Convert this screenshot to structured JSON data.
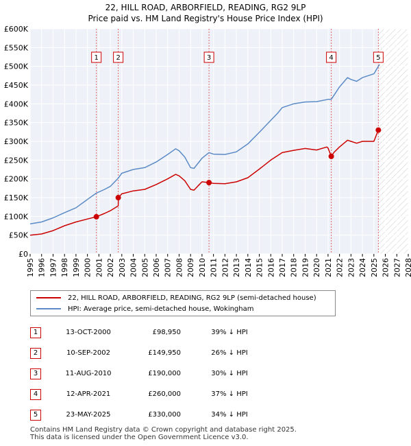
{
  "chart_data": {
    "type": "line",
    "title": "22, HILL ROAD, ARBORFIELD, READING, RG2 9LP",
    "subtitle": "Price paid vs. HM Land Registry's House Price Index (HPI)",
    "xlim": [
      1995,
      2028
    ],
    "ylim": [
      0,
      600000
    ],
    "y_ticks": [
      0,
      50000,
      100000,
      150000,
      200000,
      250000,
      300000,
      350000,
      400000,
      450000,
      500000,
      550000,
      600000
    ],
    "y_tick_labels": [
      "£0",
      "£50K",
      "£100K",
      "£150K",
      "£200K",
      "£250K",
      "£300K",
      "£350K",
      "£400K",
      "£450K",
      "£500K",
      "£550K",
      "£600K"
    ],
    "x_ticks": [
      1995,
      1996,
      1997,
      1998,
      1999,
      2000,
      2001,
      2002,
      2003,
      2004,
      2005,
      2006,
      2007,
      2008,
      2009,
      2010,
      2011,
      2012,
      2013,
      2014,
      2015,
      2016,
      2017,
      2018,
      2019,
      2020,
      2021,
      2022,
      2023,
      2024,
      2025,
      2026,
      2027,
      2028
    ],
    "future_shade_from": 2025.4,
    "series": [
      {
        "name": "22, HILL ROAD, ARBORFIELD, READING, RG2 9LP (semi-detached house)",
        "color": "#cc0000",
        "x": [
          1995.0,
          1996.0,
          1997.0,
          1998.0,
          1999.0,
          2000.0,
          2000.78,
          2001.5,
          2002.0,
          2002.69,
          2002.7,
          2003.0,
          2004.0,
          2005.0,
          2006.0,
          2007.0,
          2007.7,
          2008.0,
          2008.5,
          2009.0,
          2009.3,
          2009.8,
          2010.0,
          2010.61,
          2011.0,
          2012.0,
          2013.0,
          2014.0,
          2015.0,
          2016.0,
          2016.6,
          2017.0,
          2018.0,
          2019.0,
          2020.0,
          2020.9,
          2021.0,
          2021.28,
          2021.5,
          2022.0,
          2022.7,
          2023.0,
          2023.5,
          2024.0,
          2025.0,
          2025.39,
          2025.45
        ],
        "y": [
          50000,
          53000,
          62000,
          75000,
          85000,
          93000,
          98950,
          108000,
          115000,
          128000,
          149950,
          160000,
          168000,
          172000,
          185000,
          200000,
          212000,
          208000,
          195000,
          172000,
          170000,
          186000,
          192000,
          190000,
          188000,
          187000,
          192000,
          203000,
          226000,
          250000,
          262000,
          270000,
          276000,
          281000,
          277000,
          285000,
          282000,
          260000,
          270000,
          285000,
          303000,
          300000,
          295000,
          300000,
          300000,
          330000,
          335000
        ]
      },
      {
        "name": "HPI: Average price, semi-detached house, Wokingham",
        "color": "#5b8ac6",
        "x": [
          1995.0,
          1996.0,
          1997.0,
          1998.0,
          1999.0,
          2000.0,
          2000.78,
          2001.5,
          2002.0,
          2002.69,
          2003.0,
          2004.0,
          2005.0,
          2006.0,
          2007.0,
          2007.7,
          2008.0,
          2008.5,
          2009.0,
          2009.3,
          2010.0,
          2010.61,
          2011.0,
          2012.0,
          2013.0,
          2014.0,
          2015.0,
          2016.0,
          2016.6,
          2017.0,
          2018.0,
          2019.0,
          2020.0,
          2021.0,
          2021.28,
          2022.0,
          2022.7,
          2023.0,
          2023.5,
          2024.0,
          2025.0,
          2025.39,
          2025.5
        ],
        "y": [
          80000,
          85000,
          96000,
          110000,
          123000,
          145000,
          162000,
          172000,
          180000,
          202000,
          215000,
          225000,
          230000,
          245000,
          265000,
          280000,
          275000,
          258000,
          230000,
          228000,
          255000,
          270000,
          266000,
          265000,
          272000,
          293000,
          324000,
          356000,
          375000,
          390000,
          400000,
          405000,
          406000,
          412000,
          412000,
          445000,
          470000,
          465000,
          460000,
          470000,
          480000,
          500000,
          505000
        ]
      }
    ],
    "sales": [
      {
        "label": "1",
        "x": 2000.78,
        "y": 98950
      },
      {
        "label": "2",
        "x": 2002.69,
        "y": 149950
      },
      {
        "label": "3",
        "x": 2010.61,
        "y": 190000
      },
      {
        "label": "4",
        "x": 2021.28,
        "y": 260000
      },
      {
        "label": "5",
        "x": 2025.39,
        "y": 330000
      }
    ]
  },
  "legend": {
    "property_label": "22, HILL ROAD, ARBORFIELD, READING, RG2 9LP (semi-detached house)",
    "hpi_label": "HPI: Average price, semi-detached house, Wokingham",
    "property_color": "#cc0000",
    "hpi_color": "#5b8ac6"
  },
  "transactions": [
    {
      "num": "1",
      "date": "13-OCT-2000",
      "price": "£98,950",
      "hpi": "39% ↓ HPI"
    },
    {
      "num": "2",
      "date": "10-SEP-2002",
      "price": "£149,950",
      "hpi": "26% ↓ HPI"
    },
    {
      "num": "3",
      "date": "11-AUG-2010",
      "price": "£190,000",
      "hpi": "30% ↓ HPI"
    },
    {
      "num": "4",
      "date": "12-APR-2021",
      "price": "£260,000",
      "hpi": "37% ↓ HPI"
    },
    {
      "num": "5",
      "date": "23-MAY-2025",
      "price": "£330,000",
      "hpi": "34% ↓ HPI"
    }
  ],
  "footer": {
    "line1": "Contains HM Land Registry data © Crown copyright and database right 2025.",
    "line2": "This data is licensed under the Open Government Licence v3.0."
  }
}
